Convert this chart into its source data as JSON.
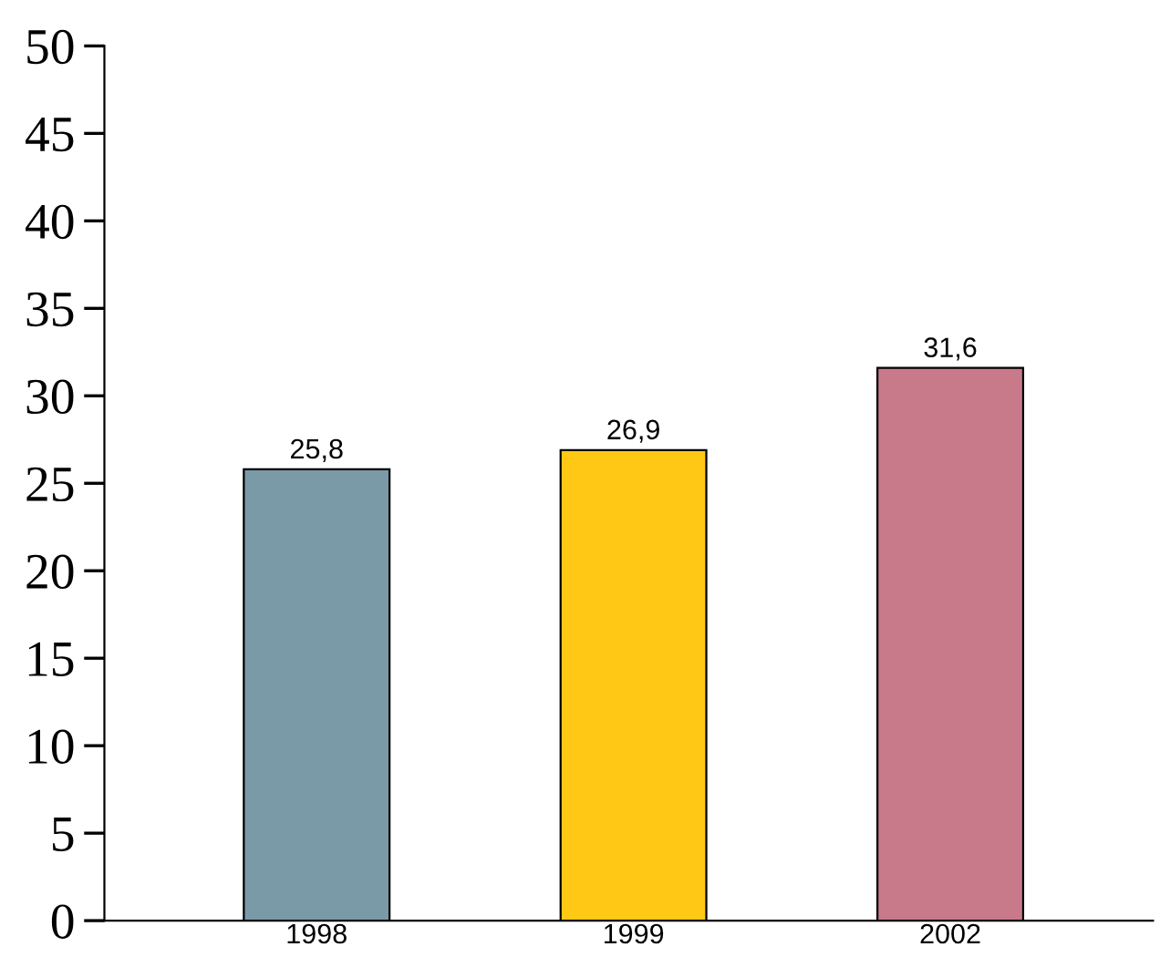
{
  "chart_data": {
    "type": "bar",
    "categories": [
      "1998",
      "1999",
      "2002"
    ],
    "values": [
      25.8,
      26.9,
      31.6
    ],
    "colors": [
      "#7a9aa8",
      "#ffc814",
      "#c87a8a"
    ],
    "value_labels": [
      "25,8",
      "26,9",
      "31,6"
    ],
    "ylim": [
      0,
      50
    ],
    "yticks": [
      0,
      5,
      10,
      15,
      20,
      25,
      30,
      35,
      40,
      45,
      50
    ],
    "grid": false,
    "legend": false
  }
}
